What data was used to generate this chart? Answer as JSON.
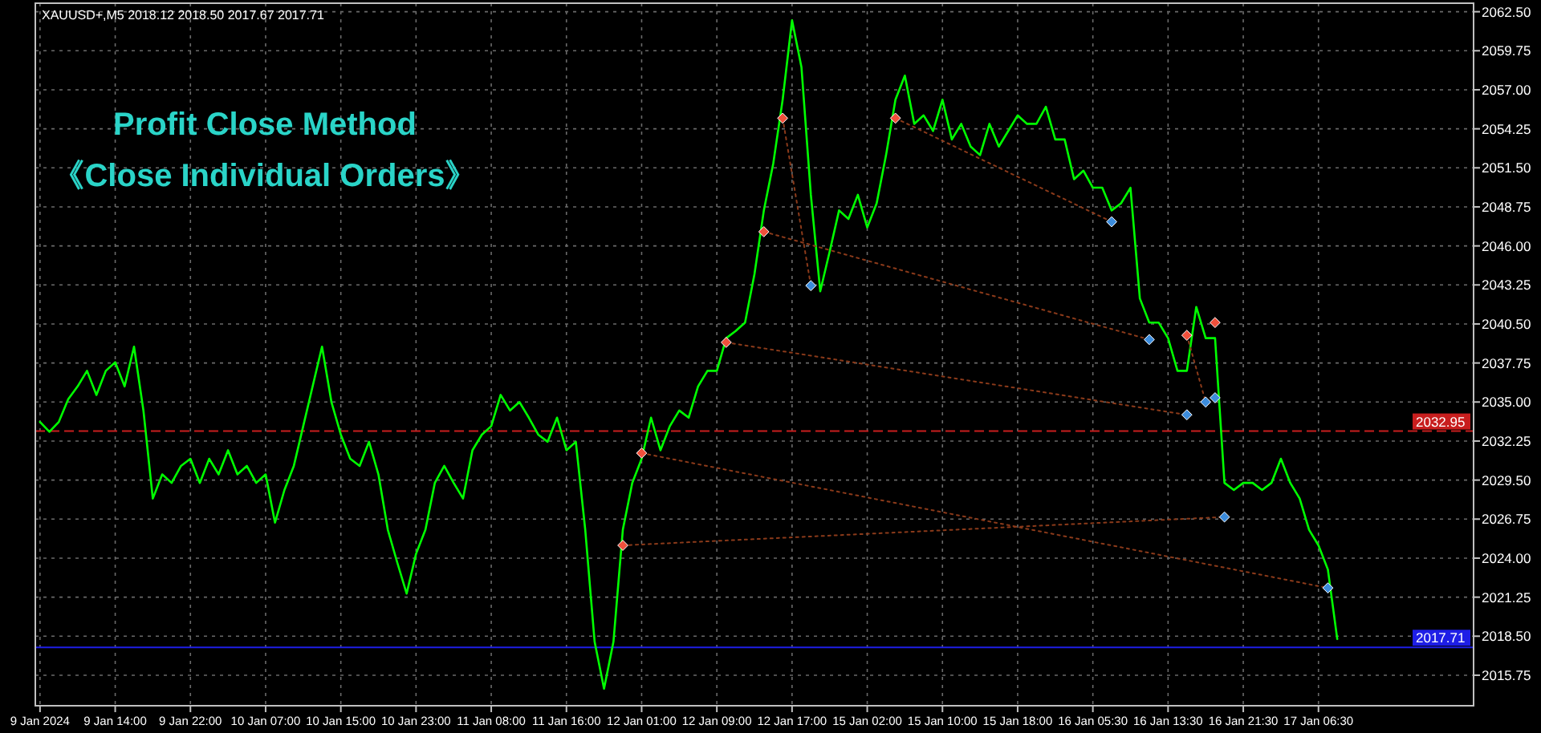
{
  "chart_data": {
    "type": "line",
    "title": "Profit Close Method\n《Close Individual Orders》",
    "subtitle": "XAUUSD+,M5  2018.12 2018.50 2017.67 2017.71",
    "categories": [
      "9 Jan 2024",
      null,
      null,
      null,
      null,
      null,
      null,
      null,
      "9 Jan 14:00",
      null,
      null,
      null,
      null,
      null,
      null,
      null,
      "9 Jan 22:00",
      null,
      null,
      null,
      null,
      null,
      null,
      null,
      "10 Jan 07:00",
      null,
      null,
      null,
      null,
      null,
      null,
      null,
      "10 Jan 15:00",
      null,
      null,
      null,
      null,
      null,
      null,
      null,
      "10 Jan 23:00",
      null,
      null,
      null,
      null,
      null,
      null,
      null,
      "11 Jan 08:00",
      null,
      null,
      null,
      null,
      null,
      null,
      null,
      "11 Jan 16:00",
      null,
      null,
      null,
      null,
      null,
      null,
      null,
      "12 Jan 01:00",
      null,
      null,
      null,
      null,
      null,
      null,
      null,
      "12 Jan 09:00",
      null,
      null,
      null,
      null,
      null,
      null,
      null,
      "12 Jan 17:00",
      null,
      null,
      null,
      null,
      null,
      null,
      null,
      "15 Jan 02:00",
      null,
      null,
      null,
      null,
      null,
      null,
      null,
      "15 Jan 10:00",
      null,
      null,
      null,
      null,
      null,
      null,
      null,
      "15 Jan 18:00",
      null,
      null,
      null,
      null,
      null,
      null,
      null,
      "16 Jan 05:30",
      null,
      null,
      null,
      null,
      null,
      null,
      null,
      "16 Jan 13:30",
      null,
      null,
      null,
      null,
      null,
      null,
      null,
      "16 Jan 21:30",
      null,
      null,
      null,
      null,
      null,
      null,
      null,
      "17 Jan 06:30",
      null,
      null,
      null,
      null,
      null,
      null,
      null,
      null,
      null,
      null,
      null,
      null,
      null,
      null,
      null,
      null
    ],
    "series": [
      {
        "type": "line",
        "color": "#00ff00",
        "values": [
          2033.6,
          2032.9,
          2033.6,
          2035.2,
          2036.1,
          2037.2,
          2035.5,
          2037.2,
          2037.8,
          2036.1,
          2038.9,
          2034.4,
          2028.2,
          2029.9,
          2029.3,
          2030.5,
          2031.0,
          2029.3,
          2031.0,
          2029.9,
          2031.6,
          2029.9,
          2030.5,
          2029.3,
          2029.9,
          2026.5,
          2028.8,
          2030.5,
          2033.3,
          2036.1,
          2038.9,
          2035.0,
          2032.7,
          2031.0,
          2030.5,
          2032.2,
          2029.9,
          2026.0,
          2023.7,
          2021.5,
          2024.3,
          2026.0,
          2029.3,
          2030.5,
          2029.3,
          2028.2,
          2031.6,
          2032.7,
          2033.3,
          2035.5,
          2034.4,
          2035.0,
          2033.9,
          2032.7,
          2032.2,
          2033.9,
          2031.6,
          2032.2,
          2026.0,
          2018.1,
          2014.8,
          2018.1,
          2026.0,
          2029.3,
          2031.0,
          2033.9,
          2031.6,
          2033.3,
          2034.4,
          2033.9,
          2036.1,
          2037.2,
          2037.2,
          2039.5,
          2040.0,
          2040.6,
          2044.0,
          2048.5,
          2051.8,
          2056.3,
          2061.9,
          2058.6,
          2049.6,
          2042.8,
          2045.6,
          2048.5,
          2047.9,
          2049.6,
          2047.3,
          2049.0,
          2052.4,
          2056.3,
          2058.0,
          2054.6,
          2055.2,
          2054.1,
          2056.3,
          2053.5,
          2054.6,
          2053.0,
          2052.4,
          2054.6,
          2053.0,
          2054.1,
          2055.2,
          2054.6,
          2054.6,
          2055.8,
          2053.5,
          2053.5,
          2050.7,
          2051.3,
          2050.1,
          2050.1,
          2048.5,
          2049.0,
          2050.1,
          2042.3,
          2040.6,
          2040.6,
          2039.5,
          2037.2,
          2037.2,
          2041.7,
          2039.5,
          2039.5,
          2029.3,
          2028.8,
          2029.3,
          2029.3,
          2028.8,
          2029.3,
          2031.0,
          2029.3,
          2028.2,
          2026.0,
          2024.9,
          2023.2,
          2018.3,
          null,
          null,
          null,
          null,
          null,
          null,
          null,
          null,
          null,
          null,
          null,
          null,
          null,
          null
        ]
      },
      {
        "type": "line",
        "line_style": "dotted",
        "color": "#8b3a1a",
        "values": [
          null,
          null,
          null,
          null,
          null,
          null,
          null,
          null,
          null,
          null,
          null,
          null,
          null,
          null,
          null,
          null,
          null,
          null,
          null,
          null,
          null,
          null,
          null,
          null,
          null,
          null,
          null,
          null,
          null,
          null,
          null,
          null,
          null,
          null,
          null,
          null,
          null,
          null,
          null,
          null,
          null,
          null,
          null,
          null,
          null,
          null,
          null,
          null,
          null,
          null,
          null,
          null,
          null,
          null,
          null,
          null,
          null,
          null,
          null,
          null,
          null,
          null,
          2024.9,
          null,
          null,
          null,
          null,
          null,
          null,
          null,
          null,
          null,
          null,
          null,
          null,
          null,
          null,
          null,
          null,
          null,
          null,
          null,
          null,
          null,
          null,
          null,
          null,
          null,
          null,
          null,
          null,
          null,
          null,
          null,
          null,
          null,
          null,
          null,
          null,
          null,
          null,
          null,
          null,
          null,
          null,
          null,
          null,
          null,
          null,
          null,
          null,
          null,
          null,
          null,
          null,
          null,
          null,
          null,
          null,
          null,
          null,
          null,
          null,
          null,
          null,
          null,
          2026.9,
          null,
          null,
          null,
          null,
          null,
          null,
          null,
          null,
          null,
          null,
          null,
          null,
          null,
          null,
          null,
          null,
          null,
          null,
          null,
          null,
          null,
          null,
          null,
          null,
          null,
          null
        ]
      },
      {
        "type": "line",
        "line_style": "dotted",
        "color": "#8b3a1a",
        "values": [
          null,
          null,
          null,
          null,
          null,
          null,
          null,
          null,
          null,
          null,
          null,
          null,
          null,
          null,
          null,
          null,
          null,
          null,
          null,
          null,
          null,
          null,
          null,
          null,
          null,
          null,
          null,
          null,
          null,
          null,
          null,
          null,
          null,
          null,
          null,
          null,
          null,
          null,
          null,
          null,
          null,
          null,
          null,
          null,
          null,
          null,
          null,
          null,
          null,
          null,
          null,
          null,
          null,
          null,
          null,
          null,
          null,
          null,
          null,
          null,
          null,
          null,
          null,
          null,
          2031.4,
          null,
          null,
          null,
          null,
          null,
          null,
          null,
          null,
          null,
          null,
          null,
          null,
          null,
          null,
          null,
          null,
          null,
          null,
          null,
          null,
          null,
          null,
          null,
          null,
          null,
          null,
          null,
          null,
          null,
          null,
          null,
          null,
          null,
          null,
          null,
          null,
          null,
          null,
          null,
          null,
          null,
          null,
          null,
          null,
          null,
          null,
          null,
          null,
          null,
          null,
          null,
          null,
          null,
          null,
          null,
          null,
          null,
          null,
          null,
          null,
          null,
          null,
          null,
          null,
          null,
          null,
          null,
          null,
          null,
          null,
          null,
          null,
          2021.9,
          null,
          null,
          null,
          null,
          null,
          null,
          null,
          null,
          null,
          null,
          null,
          null,
          null,
          null,
          null
        ]
      },
      {
        "type": "line",
        "line_style": "dotted",
        "color": "#8b3a1a",
        "values": [
          null,
          null,
          null,
          null,
          null,
          null,
          null,
          null,
          null,
          null,
          null,
          null,
          null,
          null,
          null,
          null,
          null,
          null,
          null,
          null,
          null,
          null,
          null,
          null,
          null,
          null,
          null,
          null,
          null,
          null,
          null,
          null,
          null,
          null,
          null,
          null,
          null,
          null,
          null,
          null,
          null,
          null,
          null,
          null,
          null,
          null,
          null,
          null,
          null,
          null,
          null,
          null,
          null,
          null,
          null,
          null,
          null,
          null,
          null,
          null,
          null,
          null,
          null,
          null,
          null,
          null,
          null,
          null,
          null,
          null,
          null,
          null,
          null,
          2039.2,
          null,
          null,
          null,
          null,
          null,
          null,
          null,
          null,
          null,
          null,
          null,
          null,
          null,
          null,
          null,
          null,
          null,
          null,
          null,
          null,
          null,
          null,
          null,
          null,
          null,
          null,
          null,
          null,
          null,
          null,
          null,
          null,
          null,
          null,
          null,
          null,
          null,
          null,
          null,
          null,
          null,
          null,
          null,
          null,
          null,
          null,
          null,
          null,
          2034.1,
          null,
          null,
          null,
          null,
          null,
          null,
          null,
          null,
          null,
          null,
          null,
          null,
          null,
          null,
          null,
          null,
          null,
          null,
          null,
          null,
          null,
          null,
          null,
          null,
          null,
          null,
          null,
          null,
          null,
          null
        ]
      },
      {
        "type": "line",
        "line_style": "dotted",
        "color": "#8b3a1a",
        "values": [
          null,
          null,
          null,
          null,
          null,
          null,
          null,
          null,
          null,
          null,
          null,
          null,
          null,
          null,
          null,
          null,
          null,
          null,
          null,
          null,
          null,
          null,
          null,
          null,
          null,
          null,
          null,
          null,
          null,
          null,
          null,
          null,
          null,
          null,
          null,
          null,
          null,
          null,
          null,
          null,
          null,
          null,
          null,
          null,
          null,
          null,
          null,
          null,
          null,
          null,
          null,
          null,
          null,
          null,
          null,
          null,
          null,
          null,
          null,
          null,
          null,
          null,
          null,
          null,
          null,
          null,
          null,
          null,
          null,
          null,
          null,
          null,
          null,
          null,
          null,
          null,
          null,
          2047.0,
          null,
          null,
          null,
          null,
          null,
          null,
          null,
          null,
          null,
          null,
          null,
          null,
          null,
          null,
          null,
          null,
          null,
          null,
          null,
          null,
          null,
          null,
          null,
          null,
          null,
          null,
          null,
          null,
          null,
          null,
          null,
          null,
          null,
          null,
          null,
          null,
          null,
          null,
          null,
          null,
          2039.4,
          null,
          null,
          null,
          null,
          null,
          null,
          null,
          null,
          null,
          null,
          null,
          null,
          null,
          null,
          null,
          null,
          null,
          null,
          null,
          null,
          null,
          null,
          null,
          null,
          null,
          null,
          null,
          null,
          null,
          null,
          null,
          null,
          null,
          null
        ]
      },
      {
        "type": "line",
        "line_style": "dotted",
        "color": "#8b3a1a",
        "values": [
          null,
          null,
          null,
          null,
          null,
          null,
          null,
          null,
          null,
          null,
          null,
          null,
          null,
          null,
          null,
          null,
          null,
          null,
          null,
          null,
          null,
          null,
          null,
          null,
          null,
          null,
          null,
          null,
          null,
          null,
          null,
          null,
          null,
          null,
          null,
          null,
          null,
          null,
          null,
          null,
          null,
          null,
          null,
          null,
          null,
          null,
          null,
          null,
          null,
          null,
          null,
          null,
          null,
          null,
          null,
          null,
          null,
          null,
          null,
          null,
          null,
          null,
          null,
          null,
          null,
          null,
          null,
          null,
          null,
          null,
          null,
          null,
          null,
          null,
          null,
          null,
          null,
          null,
          null,
          2055.0,
          null,
          null,
          2043.2,
          null,
          null,
          null,
          null,
          null,
          null,
          null,
          null,
          null,
          null,
          null,
          null,
          null,
          null,
          null,
          null,
          null,
          null,
          null,
          null,
          null,
          null,
          null,
          null,
          null,
          null,
          null,
          null,
          null,
          null,
          null,
          null,
          null,
          null,
          null,
          null,
          null,
          null,
          null,
          null,
          null,
          null,
          null,
          null,
          null,
          null,
          null,
          null,
          null,
          null,
          null,
          null,
          null,
          null,
          null,
          null,
          null,
          null,
          null,
          null,
          null,
          null,
          null,
          null,
          null,
          null,
          null,
          null,
          null,
          null
        ]
      },
      {
        "type": "line",
        "line_style": "dotted",
        "color": "#8b3a1a",
        "values": [
          null,
          null,
          null,
          null,
          null,
          null,
          null,
          null,
          null,
          null,
          null,
          null,
          null,
          null,
          null,
          null,
          null,
          null,
          null,
          null,
          null,
          null,
          null,
          null,
          null,
          null,
          null,
          null,
          null,
          null,
          null,
          null,
          null,
          null,
          null,
          null,
          null,
          null,
          null,
          null,
          null,
          null,
          null,
          null,
          null,
          null,
          null,
          null,
          null,
          null,
          null,
          null,
          null,
          null,
          null,
          null,
          null,
          null,
          null,
          null,
          null,
          null,
          null,
          null,
          null,
          null,
          null,
          null,
          null,
          null,
          null,
          null,
          null,
          null,
          null,
          null,
          null,
          null,
          null,
          null,
          null,
          null,
          null,
          null,
          null,
          null,
          null,
          null,
          null,
          null,
          null,
          2055.0,
          null,
          null,
          null,
          null,
          null,
          null,
          null,
          null,
          null,
          null,
          null,
          null,
          null,
          null,
          null,
          null,
          null,
          null,
          null,
          null,
          null,
          null,
          2047.7,
          null,
          null,
          null,
          null,
          null,
          null,
          null,
          null,
          null,
          null,
          null,
          null,
          null,
          null,
          null,
          null,
          null,
          null,
          null,
          null,
          null,
          null,
          null,
          null,
          null,
          null,
          null,
          null,
          null,
          null,
          null,
          null,
          null,
          null,
          null,
          null,
          null,
          null
        ]
      },
      {
        "type": "line",
        "line_style": "dotted",
        "color": "#8b3a1a",
        "values": [
          null,
          null,
          null,
          null,
          null,
          null,
          null,
          null,
          null,
          null,
          null,
          null,
          null,
          null,
          null,
          null,
          null,
          null,
          null,
          null,
          null,
          null,
          null,
          null,
          null,
          null,
          null,
          null,
          null,
          null,
          null,
          null,
          null,
          null,
          null,
          null,
          null,
          null,
          null,
          null,
          null,
          null,
          null,
          null,
          null,
          null,
          null,
          null,
          null,
          null,
          null,
          null,
          null,
          null,
          null,
          null,
          null,
          null,
          null,
          null,
          null,
          null,
          null,
          null,
          null,
          null,
          null,
          null,
          null,
          null,
          null,
          null,
          null,
          null,
          null,
          null,
          null,
          null,
          null,
          null,
          null,
          null,
          null,
          null,
          null,
          null,
          null,
          null,
          null,
          null,
          null,
          null,
          null,
          null,
          null,
          null,
          null,
          null,
          null,
          null,
          null,
          null,
          null,
          null,
          null,
          null,
          null,
          null,
          null,
          null,
          null,
          null,
          null,
          null,
          null,
          null,
          null,
          null,
          null,
          null,
          null,
          null,
          2039.7,
          null,
          2035.0,
          null,
          null,
          null,
          null,
          null,
          null,
          null,
          null,
          null,
          null,
          null,
          null,
          null,
          null,
          null,
          null,
          null,
          null,
          null,
          null,
          null,
          null,
          null,
          null,
          null,
          null,
          null,
          null
        ]
      },
      {
        "type": "scatter",
        "marker": "diamond",
        "color": "#f0503c",
        "values": [
          null,
          null,
          null,
          null,
          null,
          null,
          null,
          null,
          null,
          null,
          null,
          null,
          null,
          null,
          null,
          null,
          null,
          null,
          null,
          null,
          null,
          null,
          null,
          null,
          null,
          null,
          null,
          null,
          null,
          null,
          null,
          null,
          null,
          null,
          null,
          null,
          null,
          null,
          null,
          null,
          null,
          null,
          null,
          null,
          null,
          null,
          null,
          null,
          null,
          null,
          null,
          null,
          null,
          null,
          null,
          null,
          null,
          null,
          null,
          null,
          null,
          null,
          2024.9,
          null,
          2031.4,
          null,
          null,
          null,
          null,
          null,
          null,
          null,
          null,
          2039.2,
          null,
          null,
          null,
          2047.0,
          null,
          2055.0,
          null,
          null,
          null,
          null,
          null,
          null,
          null,
          null,
          null,
          null,
          null,
          2055.0,
          null,
          null,
          null,
          null,
          null,
          null,
          null,
          null,
          null,
          null,
          null,
          null,
          null,
          null,
          null,
          null,
          null,
          null,
          null,
          null,
          null,
          null,
          null,
          null,
          null,
          null,
          null,
          null,
          null,
          null,
          2039.7,
          null,
          null,
          2040.6,
          null,
          null,
          null,
          null,
          null,
          null,
          null,
          null,
          null,
          null,
          null,
          null,
          null,
          null,
          null,
          null,
          null,
          null,
          null,
          null,
          null,
          null,
          null,
          null,
          null,
          null,
          null
        ]
      },
      {
        "type": "scatter",
        "marker": "diamond",
        "color": "#3c8cdc",
        "values": [
          null,
          null,
          null,
          null,
          null,
          null,
          null,
          null,
          null,
          null,
          null,
          null,
          null,
          null,
          null,
          null,
          null,
          null,
          null,
          null,
          null,
          null,
          null,
          null,
          null,
          null,
          null,
          null,
          null,
          null,
          null,
          null,
          null,
          null,
          null,
          null,
          null,
          null,
          null,
          null,
          null,
          null,
          null,
          null,
          null,
          null,
          null,
          null,
          null,
          null,
          null,
          null,
          null,
          null,
          null,
          null,
          null,
          null,
          null,
          null,
          null,
          null,
          null,
          null,
          null,
          null,
          null,
          null,
          null,
          null,
          null,
          null,
          null,
          null,
          null,
          null,
          null,
          null,
          null,
          null,
          null,
          null,
          2043.2,
          null,
          null,
          null,
          null,
          null,
          null,
          null,
          null,
          null,
          null,
          null,
          null,
          null,
          null,
          null,
          null,
          null,
          null,
          null,
          null,
          null,
          null,
          null,
          null,
          null,
          null,
          null,
          null,
          null,
          null,
          null,
          2047.7,
          null,
          null,
          null,
          2039.4,
          null,
          null,
          null,
          2034.1,
          null,
          2035.0,
          2035.3,
          2026.9,
          null,
          null,
          null,
          null,
          null,
          null,
          null,
          null,
          null,
          null,
          2021.9,
          null,
          null,
          null,
          null,
          null,
          null,
          null,
          null,
          null,
          null,
          null,
          null,
          null,
          null,
          null
        ]
      }
    ],
    "ylim": [
      2013.6,
      2063.1
    ],
    "yticks": [
      {
        "value": 2015.75,
        "label": "2015.75"
      },
      {
        "value": 2018.5,
        "label": "2018.50"
      },
      {
        "value": 2021.25,
        "label": "2021.25"
      },
      {
        "value": 2024,
        "label": "2024.00"
      },
      {
        "value": 2026.75,
        "label": "2026.75"
      },
      {
        "value": 2029.5,
        "label": "2029.50"
      },
      {
        "value": 2032.25,
        "label": "2032.25"
      },
      {
        "value": 2035,
        "label": "2035.00"
      },
      {
        "value": 2037.75,
        "label": "2037.75"
      },
      {
        "value": 2040.5,
        "label": "2040.50"
      },
      {
        "value": 2043.25,
        "label": "2043.25"
      },
      {
        "value": 2046,
        "label": "2046.00"
      },
      {
        "value": 2048.75,
        "label": "2048.75"
      },
      {
        "value": 2051.5,
        "label": "2051.50"
      },
      {
        "value": 2054.25,
        "label": "2054.25"
      },
      {
        "value": 2057,
        "label": "2057.00"
      },
      {
        "value": 2059.75,
        "label": "2059.75"
      },
      {
        "value": 2062.5,
        "label": "2062.50"
      }
    ],
    "ref_lines": [
      {
        "axis": "y",
        "value": 2032.95,
        "label": "2032.95",
        "color": "#c81e1e",
        "line_style": "dashed"
      },
      {
        "axis": "y",
        "value": 2017.71,
        "label": "2017.71",
        "color": "#1e1ee6",
        "line_style": "solid"
      }
    ],
    "grid": true
  }
}
